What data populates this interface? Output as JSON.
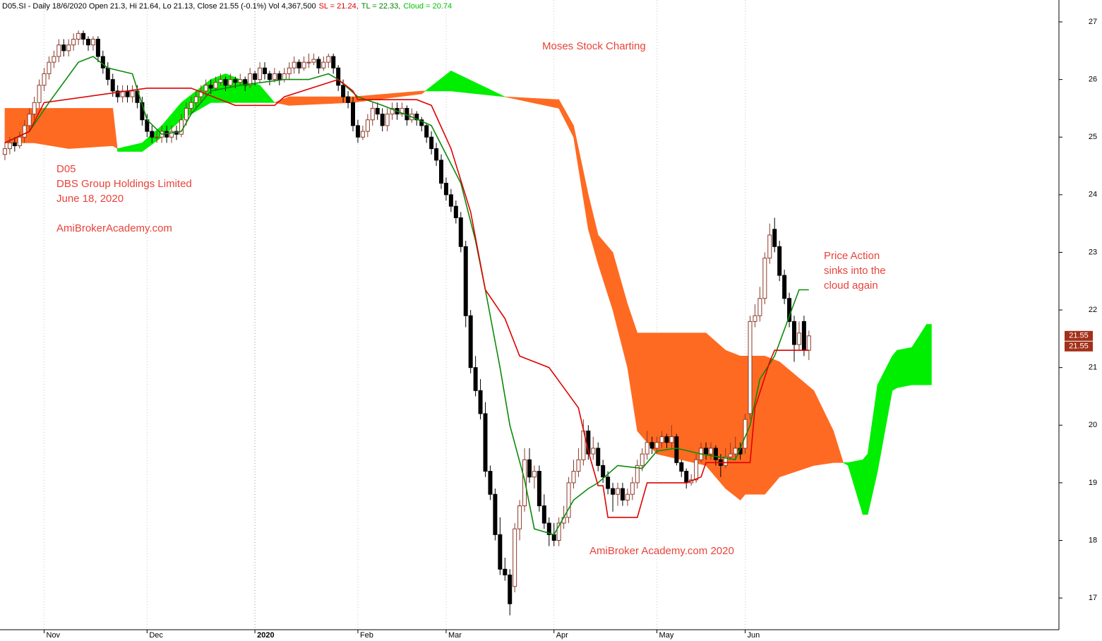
{
  "chart_data": {
    "type": "candlestick",
    "header": [
      {
        "text": "D05.SI - Daily 18/6/2020 Open 21.3, Hi 21.64, Lo 21.13, Close 21.55 (-0.1%) Vol 4,367,500",
        "color": "#000000"
      },
      {
        "text": "SL = 21.24,",
        "color": "#e00000"
      },
      {
        "text": "TL = 22.33,",
        "color": "#008000"
      },
      {
        "text": "Cloud = 20.74",
        "color": "#00c000"
      }
    ],
    "annotations": [
      "Moses Stock Charting",
      "D05",
      "DBS Group Holdings Limited",
      "June 18, 2020",
      "AmiBrokerAcademy.com",
      "Price Action",
      "sinks into the",
      "cloud again",
      "AmiBroker Academy.com  2020"
    ],
    "annotation_color": "#e8433a",
    "xlim": [
      -1,
      215
    ],
    "ylim": [
      16.45,
      27.38
    ],
    "xticks": [
      {
        "value": 8,
        "label": "Nov"
      },
      {
        "value": 29,
        "label": "Dec"
      },
      {
        "value": 51,
        "label": "2020"
      },
      {
        "value": 72,
        "label": "Feb"
      },
      {
        "value": 90,
        "label": "Mar"
      },
      {
        "value": 112,
        "label": "Apr"
      },
      {
        "value": 133,
        "label": "May"
      },
      {
        "value": 151,
        "label": "Jun"
      }
    ],
    "yticks": [
      17,
      18,
      19,
      20,
      21,
      22,
      23,
      24,
      25,
      26,
      27
    ],
    "xgrid": true,
    "up_color": "#ffffff",
    "up_outline": "#8b3a2a",
    "down_color": "#000000",
    "candles": [
      [
        24.7,
        24.9,
        24.6,
        24.8
      ],
      [
        24.8,
        25.0,
        24.7,
        24.9
      ],
      [
        24.9,
        25.0,
        24.75,
        24.85
      ],
      [
        24.85,
        25.1,
        24.8,
        25.0
      ],
      [
        25.0,
        25.3,
        24.9,
        25.2
      ],
      [
        25.2,
        25.5,
        25.1,
        25.4
      ],
      [
        25.4,
        25.7,
        25.3,
        25.6
      ],
      [
        25.6,
        26.0,
        25.5,
        25.9
      ],
      [
        25.9,
        26.2,
        25.8,
        26.1
      ],
      [
        26.1,
        26.4,
        26.0,
        26.3
      ],
      [
        26.3,
        26.5,
        26.2,
        26.4
      ],
      [
        26.4,
        26.7,
        26.3,
        26.6
      ],
      [
        26.6,
        26.7,
        26.4,
        26.5
      ],
      [
        26.5,
        26.7,
        26.4,
        26.6
      ],
      [
        26.6,
        26.8,
        26.5,
        26.7
      ],
      [
        26.7,
        26.85,
        26.6,
        26.8
      ],
      [
        26.8,
        26.85,
        26.6,
        26.7
      ],
      [
        26.7,
        26.75,
        26.5,
        26.6
      ],
      [
        26.6,
        26.75,
        26.5,
        26.7
      ],
      [
        26.7,
        26.75,
        26.3,
        26.4
      ],
      [
        26.4,
        26.5,
        26.1,
        26.2
      ],
      [
        26.2,
        26.3,
        25.9,
        26.0
      ],
      [
        26.0,
        26.1,
        25.7,
        25.8
      ],
      [
        25.8,
        25.9,
        25.6,
        25.7
      ],
      [
        25.7,
        25.9,
        25.6,
        25.8
      ],
      [
        25.8,
        25.9,
        25.6,
        25.7
      ],
      [
        25.7,
        25.9,
        25.6,
        25.8
      ],
      [
        25.8,
        25.9,
        25.5,
        25.6
      ],
      [
        25.6,
        25.7,
        25.2,
        25.3
      ],
      [
        25.3,
        25.4,
        25.0,
        25.1
      ],
      [
        25.1,
        25.2,
        24.9,
        25.0
      ],
      [
        25.0,
        25.1,
        24.9,
        25.0
      ],
      [
        25.0,
        25.2,
        24.9,
        25.1
      ],
      [
        25.1,
        25.2,
        24.9,
        25.0
      ],
      [
        25.0,
        25.2,
        24.9,
        25.1
      ],
      [
        25.1,
        25.2,
        24.95,
        25.05
      ],
      [
        25.05,
        25.4,
        25.0,
        25.3
      ],
      [
        25.3,
        25.6,
        25.2,
        25.5
      ],
      [
        25.5,
        25.7,
        25.4,
        25.6
      ],
      [
        25.6,
        25.8,
        25.5,
        25.7
      ],
      [
        25.7,
        25.9,
        25.6,
        25.8
      ],
      [
        25.8,
        26.0,
        25.7,
        25.9
      ],
      [
        25.9,
        26.0,
        25.75,
        25.85
      ],
      [
        25.85,
        26.05,
        25.8,
        25.95
      ],
      [
        25.95,
        26.1,
        25.9,
        26.0
      ],
      [
        26.0,
        26.05,
        25.8,
        25.9
      ],
      [
        25.9,
        26.1,
        25.85,
        26.0
      ],
      [
        26.0,
        26.05,
        25.85,
        25.95
      ],
      [
        25.95,
        26.1,
        25.9,
        26.0
      ],
      [
        26.0,
        26.05,
        25.8,
        25.9
      ],
      [
        25.9,
        26.2,
        25.85,
        26.1
      ],
      [
        26.1,
        26.15,
        25.9,
        26.0
      ],
      [
        26.0,
        26.3,
        25.95,
        26.2
      ],
      [
        26.2,
        26.3,
        26.0,
        26.1
      ],
      [
        26.1,
        26.15,
        25.9,
        26.0
      ],
      [
        26.0,
        26.2,
        25.95,
        26.1
      ],
      [
        26.1,
        26.15,
        25.9,
        26.0
      ],
      [
        26.0,
        26.2,
        25.95,
        26.1
      ],
      [
        26.1,
        26.3,
        26.0,
        26.2
      ],
      [
        26.2,
        26.4,
        26.1,
        26.3
      ],
      [
        26.3,
        26.35,
        26.1,
        26.2
      ],
      [
        26.2,
        26.4,
        26.15,
        26.3
      ],
      [
        26.3,
        26.45,
        26.2,
        26.3
      ],
      [
        26.3,
        26.45,
        26.25,
        26.35
      ],
      [
        26.35,
        26.4,
        26.1,
        26.2
      ],
      [
        26.2,
        26.4,
        26.15,
        26.3
      ],
      [
        26.3,
        26.45,
        26.2,
        26.4
      ],
      [
        26.4,
        26.45,
        26.1,
        26.2
      ],
      [
        26.2,
        26.25,
        25.8,
        25.9
      ],
      [
        25.9,
        26.0,
        25.6,
        25.7
      ],
      [
        25.7,
        25.8,
        25.5,
        25.6
      ],
      [
        25.6,
        25.7,
        25.1,
        25.2
      ],
      [
        25.2,
        25.3,
        24.9,
        25.0
      ],
      [
        25.0,
        25.2,
        24.95,
        25.1
      ],
      [
        25.1,
        25.4,
        25.0,
        25.3
      ],
      [
        25.3,
        25.6,
        25.2,
        25.5
      ],
      [
        25.5,
        25.6,
        25.3,
        25.4
      ],
      [
        25.4,
        25.5,
        25.1,
        25.2
      ],
      [
        25.2,
        25.5,
        25.1,
        25.4
      ],
      [
        25.4,
        25.6,
        25.3,
        25.5
      ],
      [
        25.5,
        25.6,
        25.3,
        25.4
      ],
      [
        25.4,
        25.6,
        25.35,
        25.5
      ],
      [
        25.5,
        25.55,
        25.2,
        25.3
      ],
      [
        25.3,
        25.5,
        25.25,
        25.4
      ],
      [
        25.4,
        25.45,
        25.2,
        25.3
      ],
      [
        25.3,
        25.35,
        25.1,
        25.2
      ],
      [
        25.2,
        25.25,
        24.9,
        25.0
      ],
      [
        25.0,
        25.1,
        24.7,
        24.8
      ],
      [
        24.8,
        24.9,
        24.5,
        24.6
      ],
      [
        24.6,
        24.7,
        24.1,
        24.2
      ],
      [
        24.2,
        24.3,
        23.9,
        24.0
      ],
      [
        24.0,
        24.1,
        23.7,
        23.8
      ],
      [
        23.8,
        23.9,
        23.5,
        23.6
      ],
      [
        23.6,
        23.7,
        23.0,
        23.1
      ],
      [
        23.1,
        23.2,
        21.7,
        21.9
      ],
      [
        21.9,
        22.0,
        20.9,
        21.0
      ],
      [
        21.0,
        21.2,
        20.5,
        20.6
      ],
      [
        20.6,
        20.8,
        20.1,
        20.2
      ],
      [
        20.2,
        20.4,
        19.1,
        19.2
      ],
      [
        19.2,
        19.3,
        18.7,
        18.8
      ],
      [
        18.8,
        18.9,
        18.0,
        18.1
      ],
      [
        18.1,
        18.4,
        17.4,
        17.5
      ],
      [
        17.5,
        17.7,
        17.3,
        17.4
      ],
      [
        17.4,
        17.5,
        16.7,
        16.9
      ],
      [
        17.2,
        18.3,
        17.1,
        18.2
      ],
      [
        18.2,
        18.7,
        18.0,
        18.6
      ],
      [
        18.6,
        19.6,
        18.5,
        19.4
      ],
      [
        19.4,
        19.6,
        19.0,
        19.1
      ],
      [
        19.1,
        19.3,
        18.9,
        19.2
      ],
      [
        19.2,
        19.3,
        18.5,
        18.6
      ],
      [
        18.6,
        18.8,
        18.2,
        18.3
      ],
      [
        18.3,
        18.4,
        17.9,
        18.1
      ],
      [
        18.1,
        18.3,
        17.9,
        18.0
      ],
      [
        18.0,
        18.4,
        17.9,
        18.3
      ],
      [
        18.3,
        18.6,
        18.2,
        18.4
      ],
      [
        18.4,
        19.1,
        18.3,
        19.0
      ],
      [
        19.0,
        19.4,
        18.9,
        19.2
      ],
      [
        19.2,
        19.6,
        19.1,
        19.4
      ],
      [
        19.4,
        20.1,
        19.3,
        19.9
      ],
      [
        19.9,
        20.0,
        19.4,
        19.5
      ],
      [
        19.5,
        19.8,
        19.4,
        19.6
      ],
      [
        19.6,
        19.7,
        19.2,
        19.3
      ],
      [
        19.3,
        19.4,
        19.0,
        19.1
      ],
      [
        19.1,
        19.2,
        18.8,
        18.9
      ],
      [
        18.9,
        19.0,
        18.5,
        18.8
      ],
      [
        18.8,
        19.0,
        18.6,
        18.9
      ],
      [
        18.9,
        19.0,
        18.6,
        18.7
      ],
      [
        18.7,
        18.9,
        18.6,
        18.8
      ],
      [
        18.8,
        19.1,
        18.7,
        19.0
      ],
      [
        19.0,
        19.4,
        18.9,
        19.3
      ],
      [
        19.3,
        19.6,
        19.2,
        19.5
      ],
      [
        19.5,
        19.9,
        19.4,
        19.7
      ],
      [
        19.7,
        19.8,
        19.5,
        19.6
      ],
      [
        19.6,
        19.8,
        19.5,
        19.7
      ],
      [
        19.7,
        19.9,
        19.6,
        19.8
      ],
      [
        19.8,
        19.85,
        19.6,
        19.7
      ],
      [
        19.7,
        20.0,
        19.6,
        19.8
      ],
      [
        19.8,
        19.85,
        19.3,
        19.35
      ],
      [
        19.35,
        19.4,
        19.1,
        19.2
      ],
      [
        19.2,
        19.25,
        18.9,
        19.0
      ],
      [
        19.0,
        19.15,
        18.95,
        19.05
      ],
      [
        19.05,
        19.5,
        19.0,
        19.4
      ],
      [
        19.4,
        19.7,
        19.35,
        19.6
      ],
      [
        19.6,
        19.7,
        19.4,
        19.5
      ],
      [
        19.5,
        19.7,
        19.4,
        19.6
      ],
      [
        19.6,
        19.65,
        19.3,
        19.4
      ],
      [
        19.4,
        19.5,
        19.1,
        19.3
      ],
      [
        19.3,
        19.6,
        19.25,
        19.45
      ],
      [
        19.45,
        19.7,
        19.4,
        19.5
      ],
      [
        19.5,
        19.8,
        19.4,
        19.6
      ],
      [
        19.6,
        19.7,
        19.4,
        19.5
      ],
      [
        19.6,
        20.2,
        19.5,
        20.1
      ],
      [
        20.2,
        21.9,
        20.1,
        21.8
      ],
      [
        21.8,
        22.1,
        21.7,
        21.9
      ],
      [
        21.9,
        22.4,
        21.8,
        22.2
      ],
      [
        22.2,
        23.0,
        22.1,
        22.9
      ],
      [
        22.9,
        23.5,
        22.8,
        23.3
      ],
      [
        23.4,
        23.6,
        23.0,
        23.1
      ],
      [
        23.1,
        23.2,
        22.5,
        22.6
      ],
      [
        22.6,
        22.7,
        22.1,
        22.2
      ],
      [
        22.2,
        22.3,
        21.7,
        21.8
      ],
      [
        21.8,
        21.9,
        21.1,
        21.4
      ],
      [
        21.4,
        21.8,
        21.3,
        21.6
      ],
      [
        21.8,
        21.9,
        21.2,
        21.3
      ],
      [
        21.3,
        21.64,
        21.13,
        21.55
      ]
    ],
    "lines": [
      {
        "color": "#0a8a0a",
        "x": [
          0,
          5,
          9,
          15,
          18,
          21,
          26,
          29,
          32,
          36,
          38,
          42,
          48,
          57,
          62,
          66,
          68,
          72,
          77,
          83,
          87,
          90,
          93,
          96,
          98,
          101,
          103,
          106,
          108,
          112,
          116,
          119,
          121,
          125,
          130,
          133,
          137,
          142,
          149,
          152,
          154,
          157,
          162,
          164
        ],
        "values": [
          24.9,
          25.1,
          25.6,
          26.3,
          26.4,
          26.2,
          26.1,
          25.3,
          25.05,
          25.1,
          25.4,
          25.8,
          25.9,
          26.0,
          26.0,
          26.1,
          26.0,
          25.7,
          25.55,
          25.35,
          25.2,
          24.7,
          24.2,
          23.2,
          22.35,
          21.0,
          20.0,
          19.05,
          18.2,
          18.1,
          18.7,
          18.9,
          19.0,
          19.3,
          19.25,
          19.55,
          19.6,
          19.5,
          19.4,
          20.0,
          20.8,
          21.2,
          22.35,
          22.35
        ]
      },
      {
        "color": "#e00000",
        "x": [
          0,
          5,
          8,
          29,
          38,
          47,
          55,
          57,
          68,
          71,
          72,
          84,
          87,
          91,
          95,
          98,
          102,
          105,
          111,
          114,
          117,
          119,
          121,
          122,
          123,
          129,
          131,
          139,
          142,
          143,
          152,
          153,
          156,
          157,
          164
        ],
        "values": [
          24.9,
          25.1,
          25.6,
          25.85,
          25.85,
          25.55,
          25.55,
          25.7,
          26.0,
          25.8,
          25.65,
          25.65,
          25.55,
          24.8,
          23.7,
          22.35,
          21.85,
          21.2,
          21.0,
          20.65,
          20.3,
          19.55,
          18.95,
          18.95,
          18.4,
          18.4,
          19.0,
          19.0,
          19.1,
          19.35,
          19.35,
          20.3,
          21.1,
          21.3,
          21.3
        ]
      }
    ],
    "cloud": {
      "bull_color": "#00ee00",
      "bear_color": "#ff6a22",
      "x": [
        0,
        6,
        13,
        22,
        23,
        28,
        32,
        36,
        42,
        45,
        48,
        52,
        55,
        58,
        71,
        85,
        91,
        102,
        113,
        116,
        119,
        121,
        124,
        127,
        129,
        133,
        143,
        147,
        150,
        151,
        155,
        158,
        165,
        169,
        171,
        172,
        175,
        176,
        178,
        181,
        182,
        185,
        188,
        189
      ],
      "span_a": [
        24.9,
        24.9,
        24.8,
        24.85,
        24.8,
        24.9,
        25.2,
        25.6,
        26.0,
        26.1,
        26.0,
        25.9,
        25.6,
        25.55,
        25.6,
        25.75,
        26.15,
        25.7,
        25.5,
        25.0,
        23.4,
        22.8,
        22.0,
        21.0,
        19.9,
        19.5,
        19.3,
        18.9,
        18.7,
        18.8,
        18.8,
        19.1,
        19.3,
        19.35,
        19.35,
        19.35,
        19.4,
        19.5,
        20.7,
        21.2,
        21.3,
        21.35,
        21.75,
        21.75
      ],
      "span_b": [
        25.5,
        25.5,
        25.5,
        25.5,
        24.75,
        24.75,
        25.0,
        25.3,
        25.6,
        25.6,
        25.6,
        25.6,
        25.6,
        25.7,
        25.7,
        25.8,
        25.8,
        25.7,
        25.65,
        25.2,
        24.0,
        23.3,
        23.0,
        22.1,
        21.6,
        21.6,
        21.6,
        21.3,
        21.2,
        21.2,
        21.2,
        21.1,
        20.6,
        19.9,
        19.35,
        19.3,
        18.45,
        18.45,
        19.2,
        20.6,
        20.65,
        20.7,
        20.7,
        20.7
      ]
    },
    "price_tags": [
      21.55,
      21.55
    ],
    "tag_color": "#a3301a"
  }
}
